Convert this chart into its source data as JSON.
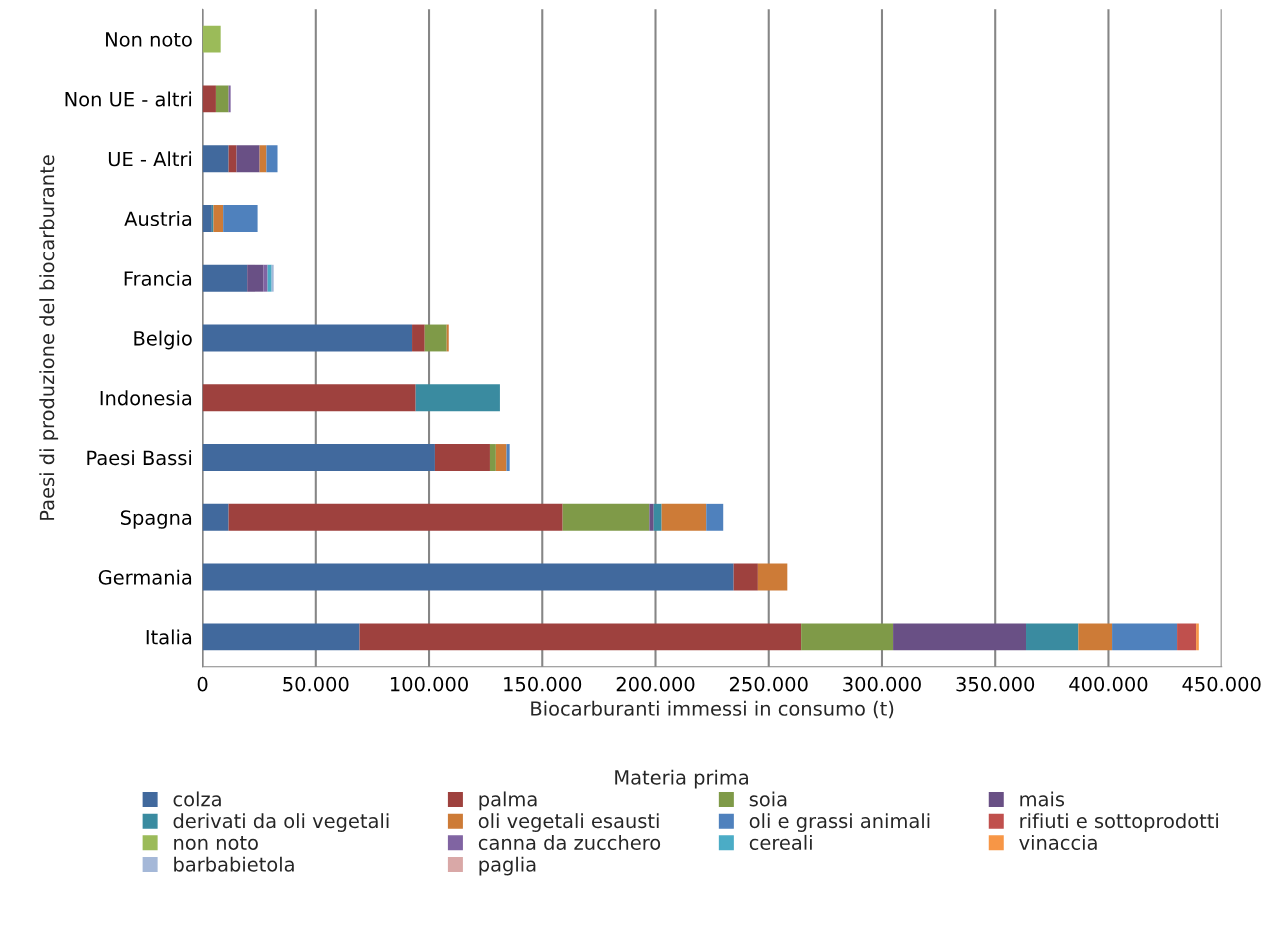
{
  "chart_data": {
    "type": "bar",
    "orientation": "horizontal",
    "stacked": true,
    "xlabel": "Biocarburanti immessi in consumo (t)",
    "ylabel": "Paesi di produzione del biocarburante",
    "legend_title": "Materia prima",
    "legend": "bottom",
    "grid": "x",
    "categories": [
      "Non noto",
      "Non UE - altri",
      "UE - Altri",
      "Austria",
      "Francia",
      "Belgio",
      "Indonesia",
      "Paesi Bassi",
      "Spagna",
      "Germania",
      "Italia"
    ],
    "xlim": [
      0,
      450000
    ],
    "xticks": [
      {
        "value": 0,
        "label": "0"
      },
      {
        "value": 50000,
        "label": "50.000"
      },
      {
        "value": 100000,
        "label": "100.000"
      },
      {
        "value": 150000,
        "label": "150.000"
      },
      {
        "value": 200000,
        "label": "200.000"
      },
      {
        "value": 250000,
        "label": "250.000"
      },
      {
        "value": 300000,
        "label": "300.000"
      },
      {
        "value": 350000,
        "label": "350.000"
      },
      {
        "value": 400000,
        "label": "400.000"
      },
      {
        "value": 450000,
        "label": "450.000"
      }
    ],
    "series": [
      {
        "name": "colza",
        "color": "#41699d",
        "values": [
          null,
          null,
          11500,
          4100,
          19700,
          92500,
          null,
          102600,
          11500,
          234500,
          69300
        ]
      },
      {
        "name": "palma",
        "color": "#9e413e",
        "values": [
          null,
          5900,
          3500,
          null,
          null,
          5600,
          94100,
          24300,
          147500,
          10700,
          195000
        ]
      },
      {
        "name": "soia",
        "color": "#7f9a48",
        "values": [
          null,
          5600,
          null,
          null,
          null,
          9700,
          null,
          2600,
          38300,
          null,
          40600
        ]
      },
      {
        "name": "mais",
        "color": "#695085",
        "values": [
          null,
          null,
          10200,
          null,
          7100,
          null,
          null,
          null,
          1900,
          null,
          58700
        ]
      },
      {
        "name": "derivati da oli vegetali",
        "color": "#3a8ba0",
        "values": [
          null,
          null,
          null,
          700,
          null,
          null,
          37200,
          null,
          3500,
          null,
          23100
        ]
      },
      {
        "name": "oli vegetali esausti",
        "color": "#cd7b37",
        "values": [
          null,
          null,
          3000,
          4300,
          null,
          900,
          null,
          4700,
          19700,
          13000,
          14900
        ]
      },
      {
        "name": "oli e grassi animali",
        "color": "#4f81bd",
        "values": [
          null,
          null,
          4900,
          15200,
          null,
          null,
          null,
          1400,
          7500,
          null,
          28700
        ]
      },
      {
        "name": "rifiuti e sottoprodotti",
        "color": "#c0504d",
        "values": [
          null,
          null,
          null,
          null,
          null,
          null,
          null,
          null,
          null,
          null,
          8400
        ]
      },
      {
        "name": "non noto",
        "color": "#9bbb59",
        "values": [
          8000,
          null,
          null,
          null,
          null,
          null,
          null,
          null,
          null,
          null,
          null
        ]
      },
      {
        "name": "canna da zucchero",
        "color": "#8064a2",
        "values": [
          null,
          900,
          null,
          null,
          1900,
          null,
          null,
          null,
          null,
          null,
          null
        ]
      },
      {
        "name": "cereali",
        "color": "#4bacc6",
        "values": [
          null,
          null,
          null,
          null,
          1800,
          null,
          null,
          null,
          null,
          null,
          null
        ]
      },
      {
        "name": "vinaccia",
        "color": "#f79646",
        "values": [
          null,
          null,
          null,
          null,
          null,
          null,
          null,
          null,
          null,
          null,
          1200
        ]
      },
      {
        "name": "barbabietola",
        "color": "#a5b8d8",
        "values": [
          null,
          null,
          null,
          null,
          900,
          null,
          null,
          null,
          null,
          null,
          null
        ]
      },
      {
        "name": "paglia",
        "color": "#d9a8a7",
        "values": [
          null,
          null,
          null,
          null,
          null,
          null,
          null,
          null,
          null,
          null,
          null
        ]
      }
    ]
  }
}
